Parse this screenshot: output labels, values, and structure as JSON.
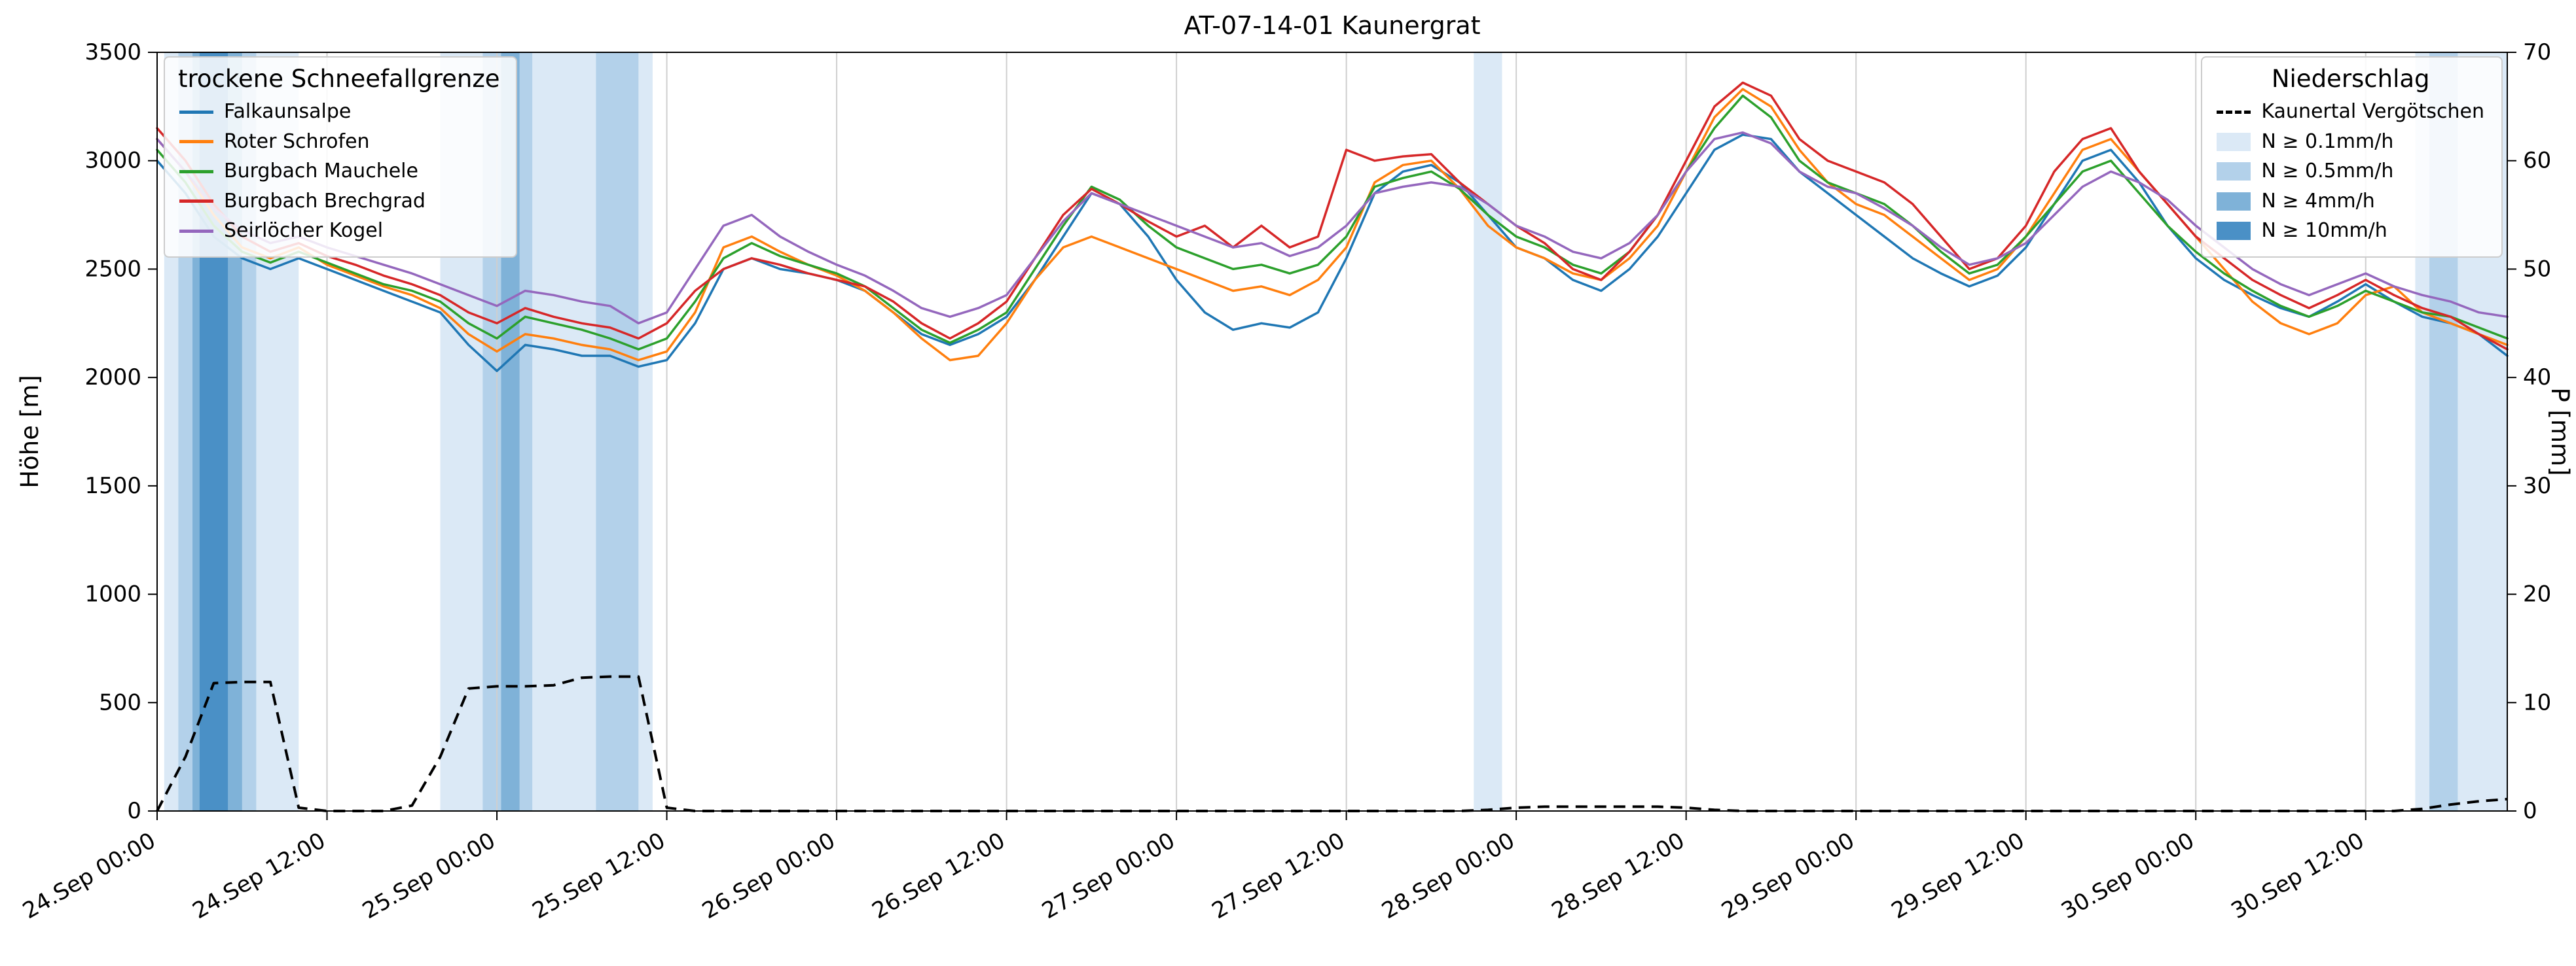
{
  "legend": {
    "snowline_title": "trockene Schneefallgrenze",
    "precip_title": "Niederschlag"
  },
  "chart_data": {
    "type": "line",
    "title": "AT-07-14-01 Kaunergrat",
    "ylabel_left": "Höhe [m]",
    "ylabel_right": "P [mm]",
    "ylim_left": [
      0,
      3500
    ],
    "ylim_right": [
      0,
      70
    ],
    "xlim_hours": [
      0,
      166
    ],
    "x_unit": "hours since 24 Sep 00:00",
    "grid": "vertical-only",
    "y_ticks_left": [
      0,
      500,
      1000,
      1500,
      2000,
      2500,
      3000,
      3500
    ],
    "y_ticks_right": [
      0,
      10,
      20,
      30,
      40,
      50,
      60,
      70
    ],
    "x_ticks": [
      {
        "h": 0,
        "label": "24.Sep 00:00"
      },
      {
        "h": 12,
        "label": "24.Sep 12:00"
      },
      {
        "h": 24,
        "label": "25.Sep 00:00"
      },
      {
        "h": 36,
        "label": "25.Sep 12:00"
      },
      {
        "h": 48,
        "label": "26.Sep 00:00"
      },
      {
        "h": 60,
        "label": "26.Sep 12:00"
      },
      {
        "h": 72,
        "label": "27.Sep 00:00"
      },
      {
        "h": 84,
        "label": "27.Sep 12:00"
      },
      {
        "h": 96,
        "label": "28.Sep 00:00"
      },
      {
        "h": 108,
        "label": "28.Sep 12:00"
      },
      {
        "h": 120,
        "label": "29.Sep 00:00"
      },
      {
        "h": 132,
        "label": "29.Sep 12:00"
      },
      {
        "h": 144,
        "label": "30.Sep 00:00"
      },
      {
        "h": 156,
        "label": "30.Sep 12:00"
      }
    ],
    "x": [
      0,
      2,
      4,
      6,
      8,
      10,
      12,
      14,
      16,
      18,
      20,
      22,
      24,
      26,
      28,
      30,
      32,
      34,
      36,
      38,
      40,
      42,
      44,
      46,
      48,
      50,
      52,
      54,
      56,
      58,
      60,
      62,
      64,
      66,
      68,
      70,
      72,
      74,
      76,
      78,
      80,
      82,
      84,
      86,
      88,
      90,
      92,
      94,
      96,
      98,
      100,
      102,
      104,
      106,
      108,
      110,
      112,
      114,
      116,
      118,
      120,
      122,
      124,
      126,
      128,
      130,
      132,
      134,
      136,
      138,
      140,
      142,
      144,
      146,
      148,
      150,
      152,
      154,
      156,
      158,
      160,
      162,
      164,
      166
    ],
    "series": [
      {
        "name": "Falkaunsalpe",
        "color": "#1f77b4",
        "values": [
          3000,
          2850,
          2650,
          2550,
          2500,
          2550,
          2500,
          2450,
          2400,
          2350,
          2300,
          2150,
          2030,
          2150,
          2130,
          2100,
          2100,
          2050,
          2080,
          2250,
          2500,
          2550,
          2500,
          2480,
          2450,
          2400,
          2300,
          2200,
          2150,
          2200,
          2280,
          2450,
          2650,
          2850,
          2800,
          2650,
          2450,
          2300,
          2220,
          2250,
          2230,
          2300,
          2550,
          2850,
          2950,
          2980,
          2900,
          2750,
          2600,
          2550,
          2450,
          2400,
          2500,
          2650,
          2850,
          3050,
          3120,
          3100,
          2950,
          2850,
          2750,
          2650,
          2550,
          2480,
          2420,
          2470,
          2600,
          2800,
          3000,
          3050,
          2900,
          2700,
          2550,
          2450,
          2380,
          2320,
          2280,
          2350,
          2430,
          2350,
          2280,
          2250,
          2200,
          2100
        ]
      },
      {
        "name": "Roter Schrofen",
        "color": "#ff7f0e",
        "values": [
          3100,
          2950,
          2750,
          2600,
          2550,
          2600,
          2520,
          2470,
          2420,
          2380,
          2320,
          2200,
          2120,
          2200,
          2180,
          2150,
          2130,
          2080,
          2120,
          2300,
          2600,
          2650,
          2580,
          2520,
          2470,
          2400,
          2300,
          2180,
          2080,
          2100,
          2250,
          2450,
          2600,
          2650,
          2600,
          2550,
          2500,
          2450,
          2400,
          2420,
          2380,
          2450,
          2600,
          2900,
          2980,
          3000,
          2870,
          2700,
          2600,
          2550,
          2480,
          2450,
          2550,
          2700,
          2950,
          3200,
          3330,
          3250,
          3050,
          2900,
          2800,
          2750,
          2650,
          2550,
          2450,
          2500,
          2650,
          2850,
          3050,
          3100,
          2950,
          2800,
          2650,
          2500,
          2350,
          2250,
          2200,
          2250,
          2380,
          2420,
          2300,
          2250,
          2200,
          2150
        ]
      },
      {
        "name": "Burgbach Mauchele",
        "color": "#2ca02c",
        "values": [
          3050,
          2900,
          2700,
          2580,
          2530,
          2580,
          2530,
          2480,
          2430,
          2400,
          2350,
          2250,
          2180,
          2280,
          2250,
          2220,
          2180,
          2130,
          2180,
          2350,
          2550,
          2620,
          2560,
          2520,
          2480,
          2420,
          2320,
          2220,
          2160,
          2220,
          2300,
          2500,
          2700,
          2880,
          2820,
          2700,
          2600,
          2550,
          2500,
          2520,
          2480,
          2520,
          2650,
          2880,
          2920,
          2950,
          2870,
          2750,
          2650,
          2600,
          2520,
          2480,
          2580,
          2750,
          2950,
          3150,
          3300,
          3200,
          3000,
          2900,
          2850,
          2800,
          2700,
          2580,
          2480,
          2520,
          2650,
          2800,
          2950,
          3000,
          2850,
          2700,
          2580,
          2480,
          2400,
          2330,
          2280,
          2330,
          2400,
          2350,
          2300,
          2280,
          2230,
          2180
        ]
      },
      {
        "name": "Burgbach Brechgrad",
        "color": "#d62728",
        "values": [
          3150,
          3000,
          2800,
          2650,
          2580,
          2620,
          2560,
          2520,
          2470,
          2430,
          2380,
          2300,
          2250,
          2320,
          2280,
          2250,
          2230,
          2180,
          2250,
          2400,
          2500,
          2550,
          2520,
          2480,
          2450,
          2420,
          2350,
          2250,
          2180,
          2250,
          2350,
          2550,
          2750,
          2870,
          2800,
          2720,
          2650,
          2700,
          2600,
          2700,
          2600,
          2650,
          3050,
          3000,
          3020,
          3030,
          2900,
          2800,
          2700,
          2620,
          2500,
          2450,
          2580,
          2750,
          3000,
          3250,
          3360,
          3300,
          3100,
          3000,
          2950,
          2900,
          2800,
          2650,
          2500,
          2550,
          2700,
          2950,
          3100,
          3150,
          2950,
          2800,
          2650,
          2550,
          2450,
          2380,
          2320,
          2380,
          2450,
          2380,
          2320,
          2280,
          2200,
          2130
        ]
      },
      {
        "name": "Seirlöcher Kogel",
        "color": "#9467bd",
        "values": [
          3100,
          2950,
          2780,
          2680,
          2620,
          2650,
          2600,
          2560,
          2520,
          2480,
          2430,
          2380,
          2330,
          2400,
          2380,
          2350,
          2330,
          2250,
          2300,
          2500,
          2700,
          2750,
          2650,
          2580,
          2520,
          2470,
          2400,
          2320,
          2280,
          2320,
          2380,
          2550,
          2720,
          2850,
          2800,
          2750,
          2700,
          2650,
          2600,
          2620,
          2560,
          2600,
          2700,
          2850,
          2880,
          2900,
          2880,
          2800,
          2700,
          2650,
          2580,
          2550,
          2620,
          2750,
          2950,
          3100,
          3130,
          3080,
          2950,
          2880,
          2850,
          2780,
          2700,
          2600,
          2520,
          2550,
          2620,
          2750,
          2880,
          2950,
          2900,
          2820,
          2700,
          2600,
          2500,
          2430,
          2380,
          2430,
          2480,
          2420,
          2380,
          2350,
          2300,
          2280
        ]
      }
    ],
    "precip_line": {
      "name": "Kaunertal Vergötschen",
      "style": "dashed",
      "color": "#000000",
      "axis": "right",
      "values": [
        0,
        5,
        11.8,
        11.9,
        11.9,
        0.3,
        0,
        0,
        0,
        0.5,
        5,
        11.3,
        11.5,
        11.5,
        11.6,
        12.3,
        12.4,
        12.4,
        0.3,
        0,
        0,
        0,
        0,
        0,
        0,
        0,
        0,
        0,
        0,
        0,
        0,
        0,
        0,
        0,
        0,
        0,
        0,
        0,
        0,
        0,
        0,
        0,
        0,
        0,
        0,
        0,
        0,
        0.1,
        0.3,
        0.4,
        0.4,
        0.4,
        0.4,
        0.4,
        0.3,
        0.1,
        0,
        0,
        0,
        0,
        0,
        0,
        0,
        0,
        0,
        0,
        0,
        0,
        0,
        0,
        0,
        0,
        0,
        0,
        0,
        0,
        0,
        0,
        0,
        0,
        0.2,
        0.6,
        0.9,
        1.1
      ]
    },
    "precip_bands": [
      {
        "start_h": 0.5,
        "end_h": 10,
        "level": "0.1"
      },
      {
        "start_h": 1.5,
        "end_h": 7,
        "level": "0.5"
      },
      {
        "start_h": 2.5,
        "end_h": 6,
        "level": "4"
      },
      {
        "start_h": 3,
        "end_h": 5,
        "level": "10"
      },
      {
        "start_h": 20,
        "end_h": 35,
        "level": "0.1"
      },
      {
        "start_h": 23,
        "end_h": 26.5,
        "level": "0.5"
      },
      {
        "start_h": 24.3,
        "end_h": 25.6,
        "level": "4"
      },
      {
        "start_h": 31,
        "end_h": 34,
        "level": "0.5"
      },
      {
        "start_h": 93,
        "end_h": 95,
        "level": "0.1"
      },
      {
        "start_h": 159.5,
        "end_h": 166,
        "level": "0.1"
      },
      {
        "start_h": 160.5,
        "end_h": 162.5,
        "level": "0.5"
      }
    ],
    "band_levels": [
      {
        "level": "0.1",
        "label": "N ≥ 0.1mm/h",
        "color": "#dbe9f6"
      },
      {
        "level": "0.5",
        "label": "N ≥ 0.5mm/h",
        "color": "#b3d1ea"
      },
      {
        "level": "4",
        "label": "N ≥ 4mm/h",
        "color": "#7fb2d8"
      },
      {
        "level": "10",
        "label": "N ≥ 10mm/h",
        "color": "#4a90c6"
      }
    ]
  }
}
